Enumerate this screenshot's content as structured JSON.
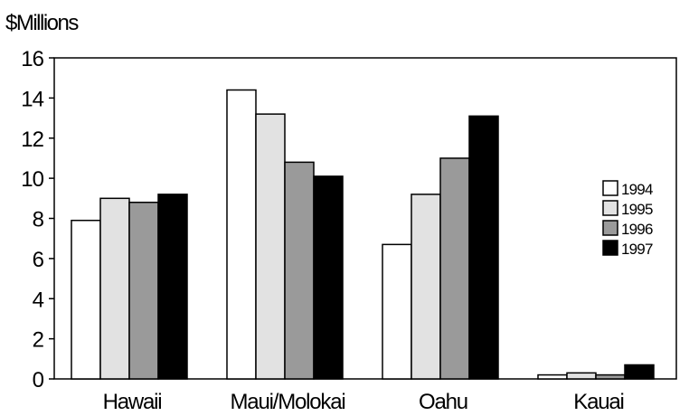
{
  "chart_data": {
    "type": "bar",
    "title": "",
    "ylabel": "$Millions",
    "xlabel": "",
    "categories": [
      "Hawaii",
      "Maui/Molokai",
      "Oahu",
      "Kauai"
    ],
    "series": [
      {
        "name": "1994",
        "color": "#ffffff",
        "values": [
          7.9,
          14.4,
          6.7,
          0.2
        ]
      },
      {
        "name": "1995",
        "color": "#e2e2e2",
        "values": [
          9.0,
          13.2,
          9.2,
          0.3
        ]
      },
      {
        "name": "1996",
        "color": "#9a9a9a",
        "values": [
          8.8,
          10.8,
          11.0,
          0.2
        ]
      },
      {
        "name": "1997",
        "color": "#000000",
        "values": [
          9.2,
          10.1,
          13.1,
          0.7
        ]
      }
    ],
    "ylim": [
      0,
      16
    ],
    "yticks": [
      0,
      2,
      4,
      6,
      8,
      10,
      12,
      14,
      16
    ],
    "grid": false,
    "legend_position": "right"
  }
}
